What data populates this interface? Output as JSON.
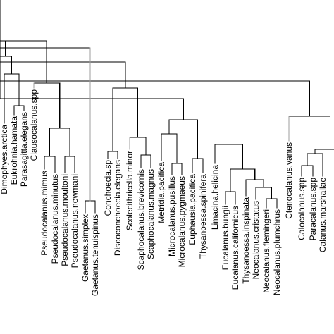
{
  "leaves": [
    "Dimophyes.arctica",
    "Eukrohnia.hamata",
    "Parasagitta.elegans",
    "Clausocalanus.spp",
    "Pseudocalanus.mimus",
    "Pseudocalanus.minutus",
    "Pseudocalanus.moultoni",
    "Pseudocalanus.newmani",
    "Gaetanus.simplex",
    "Gaetanus.tenuispinus",
    "Conchoecia.sp",
    "Discoconchoecia.elegans",
    "Scolecithricella.minor",
    "Scaphocalanus.brevicornis",
    "Scaphocalanus.magnus",
    "Metridia.pacifica",
    "Microcalanus.pusillus",
    "Microcalanus.pygmaeus",
    "Euphausia.pacifica",
    "Thysanoessa.spinifera",
    "Limacina.helicina",
    "Eucalanus.bungii",
    "Eucalanus.californicus",
    "Thysanoessa.inspinata",
    "Neocalanus.cristatus",
    "Neocalanus.flemingeri",
    "Neocalanus.plumchrus",
    "Ctenocalanus.vanus",
    "Calocalanus.spp",
    "Paracalanus.spp",
    "Calanus.marshallae"
  ],
  "colors": {
    "branch": "#000000",
    "branch_gray": "#9c9c9c",
    "label": "#000000",
    "background": "#ffffff"
  }
}
